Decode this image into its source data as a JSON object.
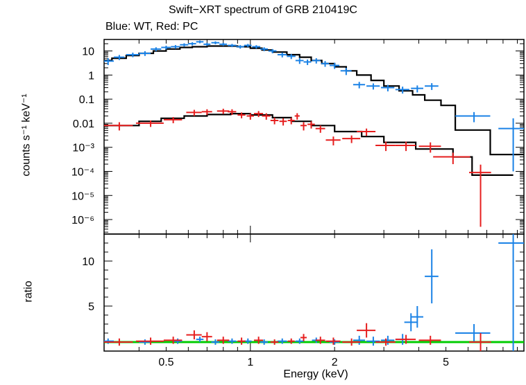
{
  "chart_data": [
    {
      "type": "scatter",
      "title": "Swift−XRT spectrum of GRB 210419C",
      "subtitle": "Blue: WT, Red: PC",
      "ylabel": "counts s⁻¹ keV⁻¹",
      "xscale": "log",
      "yscale": "log",
      "xlim": [
        0.3,
        9.5
      ],
      "ylim": [
        2.5e-07,
        30
      ],
      "yticks": [
        {
          "v": 10,
          "label": "10"
        },
        {
          "v": 1,
          "label": "1"
        },
        {
          "v": 0.1,
          "label": "0.1"
        },
        {
          "v": 0.01,
          "label": "0.01"
        },
        {
          "v": 0.001,
          "label": "10⁻³"
        },
        {
          "v": 0.0001,
          "label": "10⁻⁴"
        },
        {
          "v": 1e-05,
          "label": "10⁻⁵"
        },
        {
          "v": 1e-06,
          "label": "10⁻⁶"
        }
      ],
      "series": [
        {
          "name": "WT",
          "color": "#1a82e6",
          "x": [
            0.31,
            0.34,
            0.38,
            0.42,
            0.46,
            0.5,
            0.54,
            0.58,
            0.62,
            0.66,
            0.7,
            0.75,
            0.8,
            0.86,
            0.92,
            0.98,
            1.05,
            1.12,
            1.2,
            1.3,
            1.4,
            1.5,
            1.6,
            1.72,
            1.85,
            2.0,
            2.2,
            2.45,
            2.75,
            3.1,
            3.5,
            3.95,
            4.45,
            6.3,
            8.7
          ],
          "xerr": [
            0.015,
            0.015,
            0.02,
            0.02,
            0.02,
            0.02,
            0.02,
            0.02,
            0.02,
            0.02,
            0.02,
            0.025,
            0.025,
            0.03,
            0.03,
            0.03,
            0.035,
            0.035,
            0.04,
            0.05,
            0.05,
            0.05,
            0.05,
            0.06,
            0.06,
            0.08,
            0.1,
            0.12,
            0.15,
            0.17,
            0.2,
            0.2,
            0.25,
            0.9,
            1.0
          ],
          "y": [
            3.8,
            5.5,
            7,
            8,
            12,
            14,
            15,
            18,
            20,
            24,
            19,
            22,
            19,
            17,
            15,
            17,
            15,
            12,
            10,
            7,
            6,
            4,
            3.5,
            4,
            3,
            2.5,
            1.5,
            0.4,
            0.35,
            0.3,
            0.25,
            0.28,
            0.35,
            0.02,
            0.006
          ],
          "yerr_lo": [
            1.2,
            1.3,
            1.5,
            1.8,
            2.2,
            2.5,
            2.6,
            2.8,
            3,
            3.2,
            2.8,
            3,
            2.8,
            2.6,
            2.5,
            2.6,
            2.4,
            2.2,
            2,
            1.6,
            1.4,
            1.1,
            0.9,
            1,
            0.8,
            0.7,
            0.5,
            0.12,
            0.1,
            0.09,
            0.08,
            0.09,
            0.11,
            0.009,
            0.0059
          ],
          "yerr_hi": [
            1.2,
            1.3,
            1.5,
            1.8,
            2.2,
            2.5,
            2.6,
            2.8,
            3,
            3.2,
            2.8,
            3,
            2.8,
            2.6,
            2.5,
            2.6,
            2.4,
            2.2,
            2,
            1.6,
            1.4,
            1.1,
            0.9,
            1,
            0.8,
            0.7,
            0.5,
            0.12,
            0.1,
            0.09,
            0.08,
            0.09,
            0.11,
            0.009,
            0.01
          ]
        },
        {
          "name": "PC",
          "color": "#e61e1e",
          "x": [
            0.34,
            0.44,
            0.53,
            0.63,
            0.7,
            0.8,
            0.86,
            0.93,
            1.0,
            1.07,
            1.14,
            1.22,
            1.31,
            1.4,
            1.47,
            1.55,
            1.65,
            1.78,
            1.98,
            2.3,
            2.6,
            3.05,
            3.6,
            4.4,
            5.3,
            6.65
          ],
          "xerr": [
            0.04,
            0.05,
            0.04,
            0.04,
            0.03,
            0.04,
            0.03,
            0.03,
            0.03,
            0.04,
            0.04,
            0.04,
            0.04,
            0.04,
            0.03,
            0.04,
            0.05,
            0.07,
            0.12,
            0.17,
            0.2,
            0.25,
            0.3,
            0.4,
            0.8,
            0.6
          ],
          "y": [
            0.008,
            0.01,
            0.014,
            0.028,
            0.03,
            0.032,
            0.03,
            0.022,
            0.02,
            0.025,
            0.02,
            0.013,
            0.012,
            0.013,
            0.02,
            0.008,
            0.009,
            0.006,
            0.002,
            0.0023,
            0.0045,
            0.0012,
            0.0012,
            0.0011,
            0.0004,
            9e-05
          ],
          "yerr_lo": [
            0.003,
            0.003,
            0.004,
            0.008,
            0.008,
            0.008,
            0.008,
            0.006,
            0.006,
            0.007,
            0.006,
            0.004,
            0.004,
            0.004,
            0.006,
            0.003,
            0.003,
            0.002,
            0.0008,
            0.0008,
            0.0015,
            0.0005,
            0.0005,
            0.0005,
            0.0002,
            8.95e-05
          ],
          "yerr_hi": [
            0.003,
            0.003,
            0.004,
            0.008,
            0.008,
            0.008,
            0.008,
            0.006,
            0.006,
            0.007,
            0.006,
            0.004,
            0.004,
            0.004,
            0.006,
            0.003,
            0.003,
            0.002,
            0.0008,
            0.0008,
            0.0015,
            0.0005,
            0.0005,
            0.0005,
            0.0002,
            0.0001
          ]
        }
      ],
      "models": [
        {
          "name": "WT model",
          "color": "#000000",
          "edges": [
            0.3,
            0.32,
            0.36,
            0.4,
            0.45,
            0.5,
            0.56,
            0.62,
            0.7,
            0.8,
            0.9,
            1.0,
            1.1,
            1.2,
            1.35,
            1.5,
            1.65,
            1.8,
            2.0,
            2.2,
            2.4,
            2.7,
            3.0,
            3.4,
            3.8,
            4.2,
            4.8,
            5.4,
            7.2,
            9.5
          ],
          "values": [
            4,
            5,
            6.5,
            8,
            10,
            12,
            14,
            15,
            16,
            16,
            15,
            13,
            11,
            9,
            7,
            5.5,
            4,
            3,
            2.2,
            1.5,
            1.0,
            0.6,
            0.35,
            0.22,
            0.15,
            0.09,
            0.055,
            0.0052,
            0.0005
          ]
        },
        {
          "name": "PC model",
          "color": "#000000",
          "edges": [
            0.3,
            0.4,
            0.48,
            0.58,
            0.7,
            0.85,
            1.0,
            1.2,
            1.4,
            1.65,
            2.0,
            2.5,
            3.0,
            3.9,
            5.3,
            6.2,
            8.7
          ],
          "values": [
            0.008,
            0.012,
            0.016,
            0.02,
            0.023,
            0.025,
            0.022,
            0.017,
            0.012,
            0.008,
            0.0045,
            0.0028,
            0.0016,
            0.00085,
            0.0004,
            7e-05
          ]
        }
      ]
    },
    {
      "type": "scatter",
      "ylabel": "ratio",
      "xlabel": "Energy (keV)",
      "xscale": "log",
      "yscale": "linear",
      "xlim": [
        0.3,
        9.5
      ],
      "ylim": [
        0,
        13
      ],
      "yticks": [
        5,
        10
      ],
      "xticks": [
        {
          "v": 0.5,
          "label": "0.5"
        },
        {
          "v": 1,
          "label": "1"
        },
        {
          "v": 2,
          "label": "2"
        },
        {
          "v": 5,
          "label": "5"
        }
      ],
      "reference_line": {
        "y": 1,
        "color": "#00cc00"
      },
      "series": [
        {
          "name": "WT",
          "color": "#1a82e6",
          "x": [
            0.31,
            0.42,
            0.55,
            0.66,
            0.75,
            0.86,
            0.98,
            1.12,
            1.3,
            1.5,
            1.72,
            2.0,
            2.45,
            2.75,
            3.1,
            3.5,
            3.75,
            3.95,
            4.45,
            6.3,
            8.7
          ],
          "xerr": [
            0.015,
            0.02,
            0.02,
            0.02,
            0.025,
            0.03,
            0.03,
            0.035,
            0.05,
            0.05,
            0.06,
            0.08,
            0.12,
            0.15,
            0.17,
            0.2,
            0.2,
            0.2,
            0.25,
            0.9,
            1.0
          ],
          "y": [
            1.1,
            1.0,
            1.1,
            1.3,
            1.0,
            1.1,
            1.1,
            1.0,
            1.1,
            1.1,
            1.2,
            1.0,
            1.2,
            1.1,
            1.2,
            1.3,
            3.2,
            3.8,
            8.3,
            2.0,
            12.0
          ],
          "yerr": [
            0.3,
            0.3,
            0.3,
            0.3,
            0.3,
            0.3,
            0.3,
            0.3,
            0.3,
            0.3,
            0.3,
            0.3,
            0.5,
            0.5,
            0.5,
            0.6,
            1.0,
            1.2,
            3.0,
            1.0,
            12.0
          ]
        },
        {
          "name": "PC",
          "color": "#e61e1e",
          "x": [
            0.34,
            0.44,
            0.53,
            0.63,
            0.7,
            0.8,
            0.93,
            1.07,
            1.22,
            1.4,
            1.55,
            1.78,
            1.98,
            2.3,
            2.6,
            3.05,
            3.6,
            4.4,
            6.65
          ],
          "xerr": [
            0.04,
            0.05,
            0.04,
            0.04,
            0.03,
            0.04,
            0.03,
            0.04,
            0.04,
            0.04,
            0.04,
            0.07,
            0.12,
            0.17,
            0.2,
            0.25,
            0.3,
            0.4,
            0.6
          ],
          "y": [
            1.0,
            1.1,
            1.2,
            1.8,
            1.6,
            1.2,
            1.1,
            1.2,
            1.0,
            1.1,
            1.5,
            1.2,
            1.1,
            1.0,
            2.3,
            1.0,
            1.3,
            1.2,
            1.0
          ],
          "yerr": [
            0.4,
            0.4,
            0.4,
            0.5,
            0.5,
            0.4,
            0.4,
            0.4,
            0.3,
            0.3,
            0.4,
            0.4,
            0.4,
            0.4,
            0.8,
            0.4,
            0.5,
            0.5,
            1.0
          ]
        }
      ]
    }
  ]
}
